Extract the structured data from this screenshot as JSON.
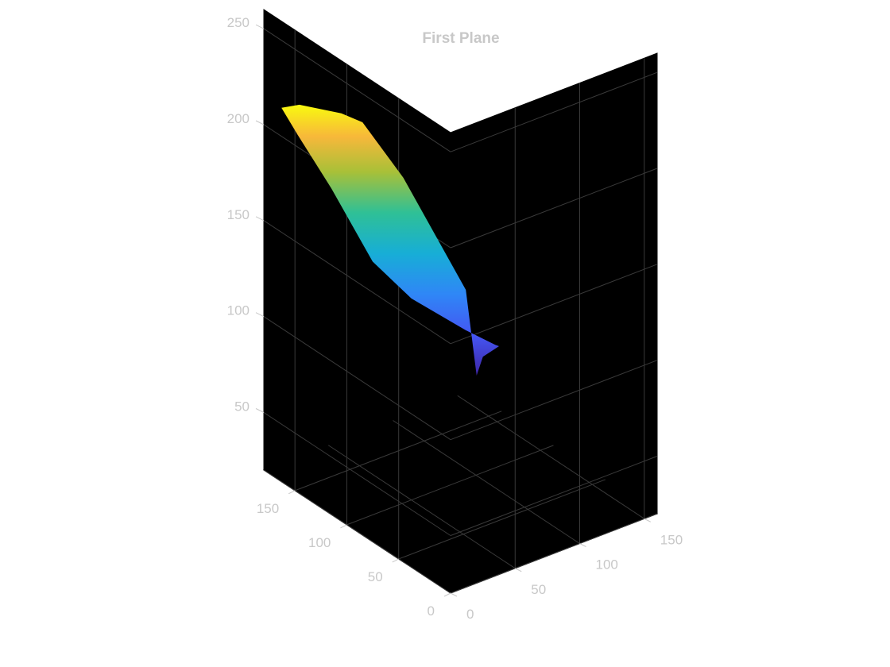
{
  "chart_data": {
    "type": "surface",
    "title": "First Plane",
    "xlabel": "",
    "ylabel": "",
    "zlabel": "",
    "colormap": "parula",
    "axes_background": "#000000",
    "text_color": "#c8c8c8",
    "grid": true,
    "xlim": [
      0,
      160
    ],
    "ylim": [
      0,
      180
    ],
    "zlim": [
      20,
      260
    ],
    "x_ticks": [
      0,
      50,
      100,
      150
    ],
    "y_ticks": [
      0,
      50,
      100,
      150
    ],
    "z_ticks": [
      50,
      100,
      150,
      200,
      250
    ],
    "x_tick_labels": [
      "0",
      "50",
      "100",
      "150"
    ],
    "y_tick_labels": [
      "0",
      "50",
      "100",
      "150"
    ],
    "z_tick_labels": [
      "50",
      "100",
      "150",
      "200",
      "250"
    ],
    "surface": {
      "z_min": 30,
      "z_max": 215,
      "outline_xyz": [
        [
          4,
          168,
          212
        ],
        [
          18,
          168,
          210
        ],
        [
          52,
          170,
          196
        ],
        [
          70,
          172,
          186
        ],
        [
          100,
          170,
          150
        ],
        [
          150,
          172,
          78
        ],
        [
          160,
          174,
          30
        ],
        [
          160,
          168,
          42
        ],
        [
          150,
          140,
          60
        ],
        [
          135,
          125,
          70
        ],
        [
          100,
          110,
          92
        ],
        [
          50,
          100,
          125
        ],
        [
          20,
          100,
          152
        ],
        [
          0,
          115,
          190
        ],
        [
          2,
          150,
          205
        ]
      ]
    }
  }
}
